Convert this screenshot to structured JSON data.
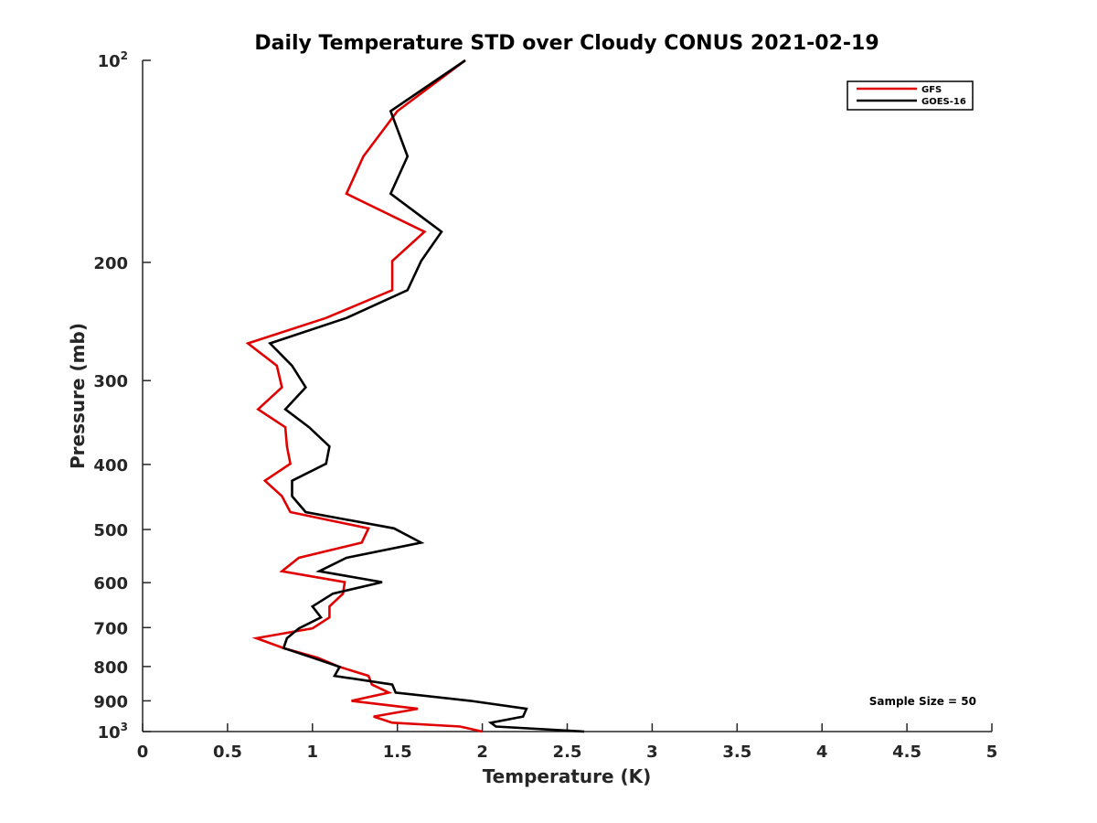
{
  "chart_data": {
    "type": "line",
    "title": "Daily Temperature STD over Cloudy CONUS 2021-02-19",
    "xlabel": "Temperature (K)",
    "ylabel": "Pressure (mb)",
    "xlim": [
      0,
      5
    ],
    "ylim": [
      100,
      1000
    ],
    "y_scale": "log",
    "y_reversed": true,
    "grid": false,
    "legend_position": "top-right",
    "x_ticks": [
      "0",
      "0.5",
      "1",
      "1.5",
      "2",
      "2.5",
      "3",
      "3.5",
      "4",
      "4.5",
      "5"
    ],
    "x_tick_values": [
      0,
      0.5,
      1,
      1.5,
      2,
      2.5,
      3,
      3.5,
      4,
      4.5,
      5
    ],
    "y_ticks": [
      {
        "value": 100,
        "base": "10",
        "exp": "2"
      },
      {
        "value": 200,
        "label": "200"
      },
      {
        "value": 300,
        "label": "300"
      },
      {
        "value": 400,
        "label": "400"
      },
      {
        "value": 500,
        "label": "500"
      },
      {
        "value": 600,
        "label": "600"
      },
      {
        "value": 700,
        "label": "700"
      },
      {
        "value": 800,
        "label": "800"
      },
      {
        "value": 900,
        "label": "900"
      },
      {
        "value": 1000,
        "base": "10",
        "exp": "3"
      }
    ],
    "annotation": "Sample Size = 50",
    "series": [
      {
        "name": "GFS",
        "color": "#e00000",
        "points": [
          [
            1.9,
            100
          ],
          [
            1.5,
            119
          ],
          [
            1.3,
            139
          ],
          [
            1.2,
            158
          ],
          [
            1.66,
            180
          ],
          [
            1.47,
            199
          ],
          [
            1.47,
            220
          ],
          [
            1.08,
            242
          ],
          [
            0.62,
            264
          ],
          [
            0.79,
            285
          ],
          [
            0.82,
            307
          ],
          [
            0.68,
            331
          ],
          [
            0.84,
            352
          ],
          [
            0.85,
            376
          ],
          [
            0.87,
            399
          ],
          [
            0.72,
            423
          ],
          [
            0.82,
            446
          ],
          [
            0.87,
            471
          ],
          [
            1.33,
            498
          ],
          [
            1.29,
            523
          ],
          [
            0.92,
            551
          ],
          [
            0.82,
            577
          ],
          [
            1.19,
            599
          ],
          [
            1.18,
            623
          ],
          [
            1.1,
            651
          ],
          [
            1.1,
            676
          ],
          [
            1.0,
            702
          ],
          [
            0.67,
            726
          ],
          [
            0.83,
            751
          ],
          [
            1.03,
            776
          ],
          [
            1.16,
            801
          ],
          [
            1.33,
            826
          ],
          [
            1.35,
            851
          ],
          [
            1.45,
            875
          ],
          [
            1.23,
            900
          ],
          [
            1.62,
            925
          ],
          [
            1.36,
            950
          ],
          [
            1.47,
            970
          ],
          [
            1.87,
            983
          ],
          [
            2.0,
            1000
          ]
        ]
      },
      {
        "name": "GOES-16",
        "color": "#000000",
        "points": [
          [
            1.9,
            100
          ],
          [
            1.46,
            119
          ],
          [
            1.56,
            139
          ],
          [
            1.46,
            158
          ],
          [
            1.76,
            180
          ],
          [
            1.64,
            199
          ],
          [
            1.56,
            220
          ],
          [
            1.2,
            242
          ],
          [
            0.75,
            264
          ],
          [
            0.88,
            285
          ],
          [
            0.96,
            307
          ],
          [
            0.84,
            331
          ],
          [
            0.98,
            352
          ],
          [
            1.1,
            376
          ],
          [
            1.08,
            399
          ],
          [
            0.88,
            423
          ],
          [
            0.88,
            446
          ],
          [
            0.96,
            471
          ],
          [
            1.48,
            498
          ],
          [
            1.64,
            523
          ],
          [
            1.2,
            551
          ],
          [
            1.04,
            577
          ],
          [
            1.41,
            599
          ],
          [
            1.12,
            623
          ],
          [
            1.0,
            651
          ],
          [
            1.05,
            676
          ],
          [
            0.92,
            702
          ],
          [
            0.85,
            726
          ],
          [
            0.83,
            751
          ],
          [
            1.0,
            776
          ],
          [
            1.16,
            801
          ],
          [
            1.13,
            826
          ],
          [
            1.47,
            851
          ],
          [
            1.49,
            875
          ],
          [
            1.93,
            900
          ],
          [
            2.26,
            925
          ],
          [
            2.24,
            950
          ],
          [
            2.05,
            970
          ],
          [
            2.08,
            983
          ],
          [
            2.6,
            1000
          ]
        ]
      }
    ]
  }
}
